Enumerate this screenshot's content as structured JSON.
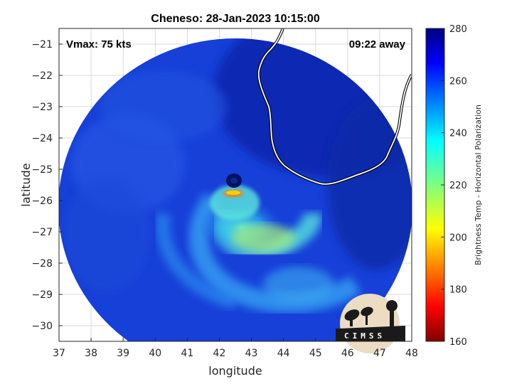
{
  "title": "Cheneso: 28-Jan-2023 10:15:00",
  "vmax": "Vmax: 75 kts",
  "away": "09:22 away",
  "logo_text": "CIMSS",
  "colors": {
    "cold": "#0a1e96",
    "warm_band": "#40e0e0",
    "core": "#ffd000",
    "eye": "#001060",
    "coast": "#ffffff"
  },
  "chart_data": {
    "type": "heatmap",
    "xlabel": "longitude",
    "ylabel": "latitude",
    "xlim": [
      37,
      48
    ],
    "ylim": [
      -30.5,
      -20.5
    ],
    "xticks": [
      37,
      38,
      39,
      40,
      41,
      42,
      43,
      44,
      45,
      46,
      47,
      48
    ],
    "yticks": [
      -21,
      -22,
      -23,
      -24,
      -25,
      -26,
      -27,
      -28,
      -29,
      -30
    ],
    "grid": true,
    "colorbar": {
      "label": "Brightness Temp - Horizontal Polarization",
      "range": [
        160,
        280
      ],
      "ticks": [
        160,
        180,
        200,
        220,
        240,
        260,
        280
      ],
      "colormap": "jet"
    },
    "storm_center": {
      "lon": 42.6,
      "lat": -25.7
    }
  }
}
